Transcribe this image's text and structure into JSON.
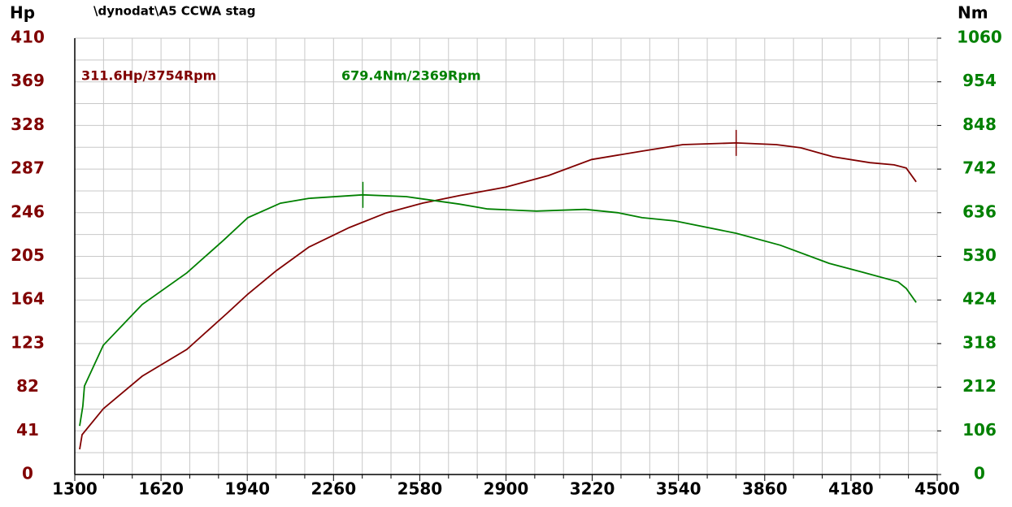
{
  "chart_data": {
    "type": "line",
    "title": "\\dynodat\\A5 CCWA stag",
    "y_label": "Hp",
    "y2_label": "Nm",
    "xlim": [
      1300,
      4500
    ],
    "xticks": [
      1300,
      1620,
      1940,
      2260,
      2580,
      2900,
      3220,
      3540,
      3860,
      4180,
      4500
    ],
    "xgrid": [
      1406.7,
      1513.3,
      1726.7,
      1833.3,
      2046.7,
      2153.3,
      2366.7,
      2473.3,
      2686.7,
      2793.3,
      3006.7,
      3113.3,
      3326.7,
      3433.3,
      3646.7,
      3753.3,
      3966.7,
      4073.3,
      4286.7,
      4393.3
    ],
    "ylim": [
      0,
      410
    ],
    "yticks": [
      0,
      41,
      82,
      123,
      164,
      205,
      246,
      287,
      328,
      369,
      410
    ],
    "ygrid": [
      20.5,
      61.5,
      102.5,
      143.5,
      184.5,
      225.5,
      266.5,
      307.5,
      348.5,
      389.5
    ],
    "y2lim": [
      0,
      1060
    ],
    "y2ticks": [
      0,
      106,
      212,
      318,
      424,
      530,
      636,
      742,
      848,
      954,
      1060
    ],
    "grid": true,
    "series": [
      {
        "name": "Hp",
        "color": "#800000",
        "axis": "y",
        "x": [
          1318,
          1327,
          1406,
          1550,
          1716,
          1867,
          1942,
          2048,
          2169,
          2319,
          2455,
          2591,
          2727,
          2898,
          3058,
          3218,
          3405,
          3556,
          3754,
          3903,
          3994,
          4114,
          4250,
          4340,
          4385,
          4422
        ],
        "values": [
          23.7,
          37.4,
          61.8,
          92.4,
          117.6,
          151.9,
          169.5,
          191.6,
          213.8,
          232.1,
          245.8,
          255,
          262,
          270,
          281,
          296,
          303.9,
          310,
          311.6,
          310,
          307,
          298.5,
          293,
          291,
          288,
          275
        ],
        "peak": {
          "x": 3754,
          "value": 311.6
        },
        "peak_label": "311.6Hp/3754Rpm"
      },
      {
        "name": "Nm",
        "color": "#008000",
        "axis": "y2",
        "x": [
          1318,
          1330,
          1336,
          1406,
          1550,
          1716,
          1852,
          1942,
          2063,
          2169,
          2369,
          2530,
          2727,
          2832,
          3013,
          3194,
          3315,
          3405,
          3526,
          3754,
          3918,
          4099,
          4220,
          4355,
          4385,
          4422
        ],
        "values": [
          118,
          166,
          215,
          314,
          413,
          490,
          569,
          624,
          659,
          671,
          679.4,
          675,
          657,
          645,
          640,
          644,
          636,
          624,
          616,
          586,
          557,
          513,
          492,
          468,
          452,
          418
        ],
        "peak": {
          "x": 2369,
          "value": 679.4
        },
        "peak_label": "679.4Nm/2369Rpm"
      }
    ]
  }
}
